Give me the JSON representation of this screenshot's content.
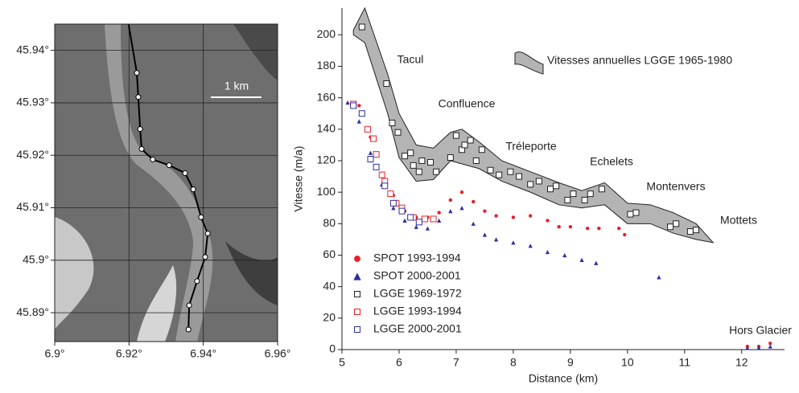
{
  "chart_data": [
    {
      "type": "map",
      "annotation": "1 km",
      "x": [
        6.9199,
        6.9221,
        6.9225,
        6.923,
        6.9234,
        6.9264,
        6.9308,
        6.9351,
        6.9373,
        6.9394,
        6.9412,
        6.9405,
        6.9383,
        6.9362,
        6.936
      ],
      "values": [
        45.9449,
        45.9357,
        45.9311,
        45.925,
        45.9212,
        45.9192,
        45.9181,
        45.9166,
        45.9135,
        45.9082,
        45.9051,
        45.9006,
        45.896,
        45.8914,
        45.8868
      ],
      "color": "#000000",
      "xlim": [
        6.9,
        6.96
      ],
      "ylim": [
        45.8845,
        45.945
      ],
      "xticks": [
        {
          "value": 6.9,
          "label": "6.9°"
        },
        {
          "value": 6.92,
          "label": "6.92°"
        },
        {
          "value": 6.94,
          "label": "6.94°"
        },
        {
          "value": 6.96,
          "label": "6.96°"
        }
      ],
      "yticks": [
        {
          "value": 45.89,
          "label": "45.89°"
        },
        {
          "value": 45.9,
          "label": "45.9°"
        },
        {
          "value": 45.91,
          "label": "45.91°"
        },
        {
          "value": 45.92,
          "label": "45.92°"
        },
        {
          "value": 45.93,
          "label": "45.93°"
        },
        {
          "value": 45.94,
          "label": "45.94°"
        }
      ],
      "grid": true
    },
    {
      "type": "scatter",
      "x_label": "Distance (km)",
      "y_label": "Vitesse (m/a)",
      "xlim": [
        5,
        12.75
      ],
      "ylim": [
        0,
        217
      ],
      "xticks": [
        5,
        6,
        7,
        8,
        9,
        10,
        11,
        12
      ],
      "yticks": [
        0,
        20,
        40,
        60,
        80,
        100,
        120,
        140,
        160,
        180,
        200
      ],
      "annotations": [
        "Tacul",
        "Confluence",
        "Tréleporte",
        "Echelets",
        "Montenvers",
        "Mottets",
        "Hors Glacier"
      ],
      "legend": "lower left",
      "band": {
        "name": "Vitesses annuelles LGGE 1965-1980",
        "color": "#b4b4b4",
        "x": [
          5.2,
          5.4,
          5.8,
          6.0,
          6.3,
          6.6,
          6.9,
          7.1,
          7.4,
          7.8,
          8.3,
          8.8,
          9.2,
          9.6,
          10.0,
          10.4,
          10.8,
          11.2,
          11.5
        ],
        "upper": [
          203,
          217,
          175,
          150,
          130,
          128,
          138,
          140,
          132,
          120,
          113,
          106,
          101,
          106,
          93,
          92,
          87,
          80,
          68
        ],
        "lower": [
          200,
          195,
          150,
          122,
          107,
          108,
          120,
          118,
          115,
          107,
          100,
          92,
          90,
          92,
          80,
          80,
          74,
          70,
          68
        ]
      },
      "series": [
        {
          "name": "SPOT 1993-1994",
          "color": "#e8202a",
          "marker": "circle",
          "x": [
            5.3,
            5.5,
            5.7,
            5.9,
            6.1,
            6.3,
            6.5,
            6.7,
            6.9,
            7.1,
            7.3,
            7.5,
            7.7,
            8.0,
            8.3,
            8.6,
            8.8,
            9.0,
            9.3,
            9.5,
            9.85,
            9.95,
            12.1,
            12.3,
            12.5
          ],
          "values": [
            155,
            135,
            112,
            98,
            88,
            84,
            84,
            87,
            95,
            100,
            94,
            88,
            85,
            84,
            85,
            82,
            78,
            78,
            77,
            77,
            77,
            73,
            2,
            2,
            4
          ]
        },
        {
          "name": "SPOT 2000-2001",
          "color": "#2a2fa0",
          "marker": "triangle",
          "x": [
            5.1,
            5.3,
            5.5,
            5.7,
            5.9,
            6.1,
            6.3,
            6.5,
            6.7,
            6.9,
            7.1,
            7.3,
            7.5,
            7.7,
            8.0,
            8.3,
            8.6,
            8.9,
            9.2,
            9.45,
            10.55,
            12.1,
            12.3,
            12.5
          ],
          "values": [
            157,
            145,
            125,
            105,
            90,
            82,
            78,
            77,
            82,
            88,
            90,
            80,
            73,
            70,
            68,
            66,
            62,
            60,
            57,
            55,
            46,
            1,
            1,
            2
          ]
        },
        {
          "name": "LGGE 1969-1972",
          "color": "#222222",
          "marker": "square",
          "x": [
            5.35,
            5.78,
            5.88,
            5.98,
            6.1,
            6.2,
            6.25,
            6.35,
            6.4,
            6.55,
            6.65,
            6.9,
            7.0,
            7.1,
            7.15,
            7.25,
            7.35,
            7.45,
            7.6,
            7.75,
            7.95,
            8.1,
            8.3,
            8.45,
            8.65,
            8.75,
            8.95,
            9.05,
            9.25,
            9.35,
            9.55,
            10.05,
            10.15,
            10.75,
            10.85,
            11.1,
            11.2
          ],
          "values": [
            205,
            169,
            144,
            138,
            123,
            125,
            117,
            113,
            120,
            119,
            113,
            122,
            136,
            127,
            130,
            133,
            120,
            127,
            114,
            111,
            113,
            110,
            105,
            107,
            102,
            104,
            95,
            99,
            95,
            99,
            102,
            86,
            87,
            78,
            80,
            75,
            76
          ]
        },
        {
          "name": "LGGE 1993-1994",
          "color": "#e8202a",
          "marker": "square",
          "x": [
            5.2,
            5.45,
            5.55,
            5.6,
            5.7,
            5.75,
            5.85,
            5.95,
            6.05,
            6.25,
            6.45,
            6.6
          ],
          "values": [
            156,
            140,
            134,
            124,
            111,
            107,
            99,
            93,
            90,
            84,
            83,
            83
          ]
        },
        {
          "name": "LGGE 2000-2001",
          "color": "#2a2fa0",
          "marker": "square",
          "x": [
            5.2,
            5.35,
            5.5,
            5.6,
            5.75,
            5.9,
            6.05,
            6.2,
            6.35
          ],
          "values": [
            155,
            150,
            121,
            116,
            104,
            93,
            88,
            84,
            81
          ]
        }
      ]
    }
  ]
}
